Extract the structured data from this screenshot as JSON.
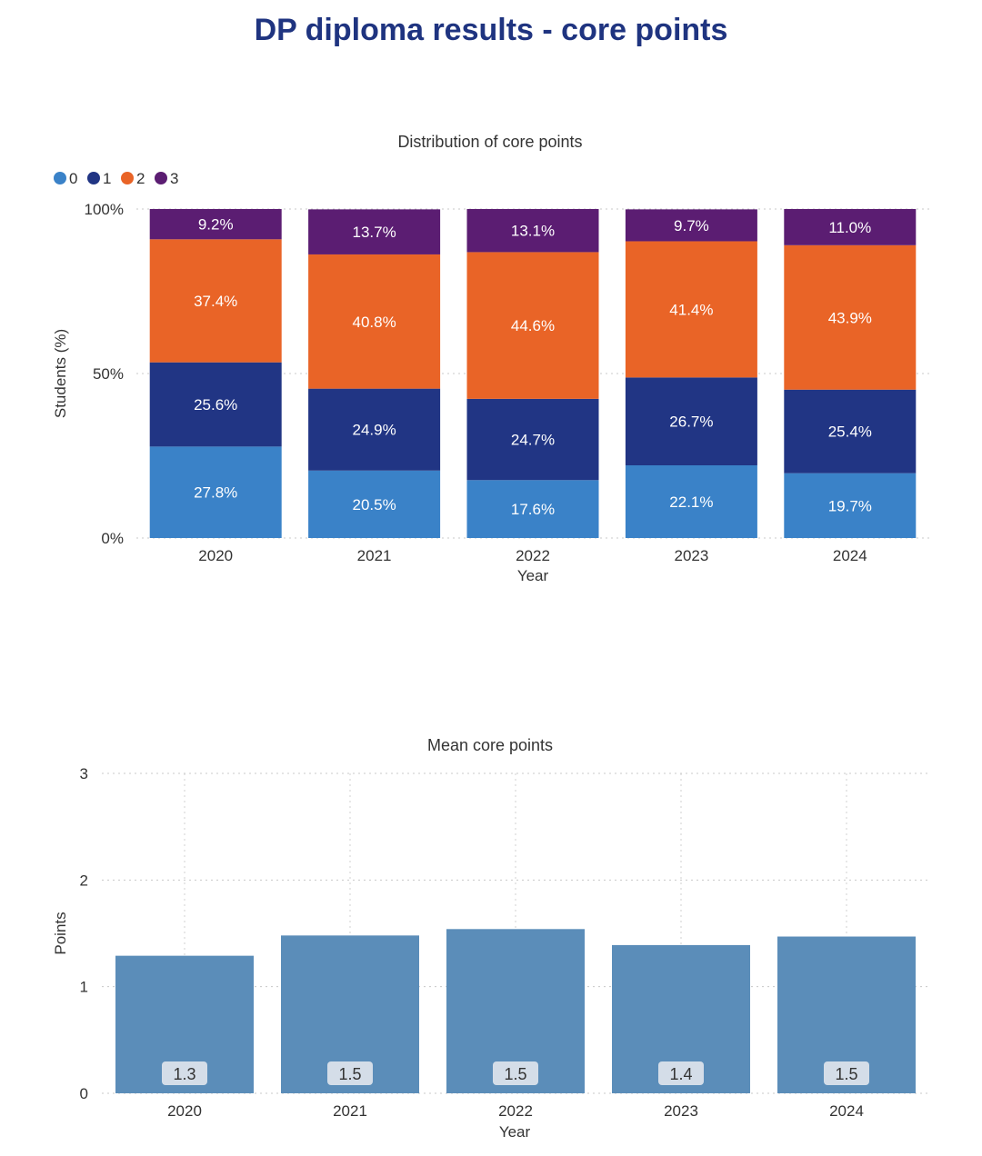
{
  "page_title": "DP diploma results - core points",
  "chart_data": [
    {
      "type": "bar",
      "stacked": true,
      "title": "Distribution of core points",
      "xlabel": "Year",
      "ylabel": "Students (%)",
      "ylim": [
        0,
        100
      ],
      "yticks": [
        "0%",
        "50%",
        "100%"
      ],
      "legend_position": "top-left",
      "categories": [
        "2020",
        "2021",
        "2022",
        "2023",
        "2024"
      ],
      "series": [
        {
          "name": "0",
          "color": "#3a82c8",
          "values": [
            27.8,
            20.5,
            17.6,
            22.1,
            19.7
          ],
          "labels": [
            "27.8%",
            "20.5%",
            "17.6%",
            "22.1%",
            "19.7%"
          ]
        },
        {
          "name": "1",
          "color": "#213584",
          "values": [
            25.6,
            24.9,
            24.7,
            26.7,
            25.4
          ],
          "labels": [
            "25.6%",
            "24.9%",
            "24.7%",
            "26.7%",
            "25.4%"
          ]
        },
        {
          "name": "2",
          "color": "#e96427",
          "values": [
            37.4,
            40.8,
            44.6,
            41.4,
            43.9
          ],
          "labels": [
            "37.4%",
            "40.8%",
            "44.6%",
            "41.4%",
            "43.9%"
          ]
        },
        {
          "name": "3",
          "color": "#5b1d72",
          "values": [
            9.2,
            13.7,
            13.1,
            9.7,
            11.0
          ],
          "labels": [
            "9.2%",
            "13.7%",
            "13.1%",
            "9.7%",
            "11.0%"
          ]
        }
      ]
    },
    {
      "type": "bar",
      "title": "Mean core points",
      "xlabel": "Year",
      "ylabel": "Points",
      "ylim": [
        0,
        3
      ],
      "yticks": [
        "0",
        "1",
        "2",
        "3"
      ],
      "color": "#5b8db9",
      "label_bg": "#d4dde8",
      "categories": [
        "2020",
        "2021",
        "2022",
        "2023",
        "2024"
      ],
      "values": [
        1.29,
        1.48,
        1.54,
        1.39,
        1.47
      ],
      "labels": [
        "1.3",
        "1.5",
        "1.5",
        "1.4",
        "1.5"
      ]
    }
  ]
}
